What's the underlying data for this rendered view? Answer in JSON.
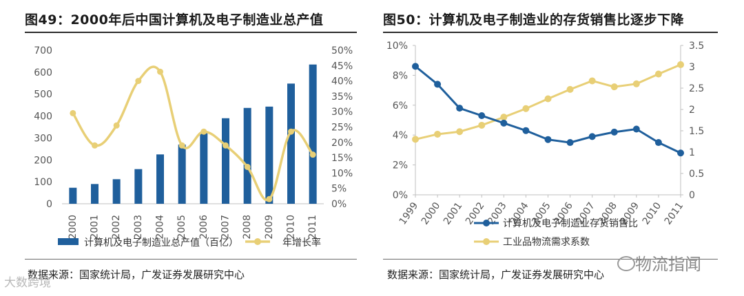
{
  "charts": [
    {
      "id": "fig49",
      "title": "图49：2000年后中国计算机及电子制造业总产值",
      "source": "数据来源：国家统计局，广发证券发展研究中心"
    },
    {
      "id": "fig50",
      "title": "图50：计算机及电子制造业的存货销售比逐步下降",
      "source": "数据来源：国家统计局，广发证券发展研究中心"
    }
  ],
  "watermarks": {
    "right": "物流指闻",
    "left": "大数跨境"
  },
  "colors": {
    "bar": "#1f5f9c",
    "yellow_line": "#e8cf76",
    "blue_line": "#1f5f9c",
    "axis": "#bfbfbf"
  },
  "chart_data": [
    {
      "type": "bar",
      "title": "图49：2000年后中国计算机及电子制造业总产值",
      "categories": [
        "2000",
        "2001",
        "2002",
        "2003",
        "2004",
        "2005",
        "2006",
        "2007",
        "2008",
        "2009",
        "2010",
        "2011"
      ],
      "series": [
        {
          "name": "计算机及电子制造业总产值（百亿）",
          "type": "bar",
          "axis": "left",
          "values": [
            73,
            90,
            112,
            158,
            225,
            270,
            327,
            390,
            437,
            443,
            548,
            635
          ]
        },
        {
          "name": "年增长率",
          "type": "line",
          "axis": "right",
          "smooth": true,
          "values": [
            0.295,
            0.19,
            0.255,
            0.4,
            0.43,
            0.19,
            0.235,
            0.19,
            0.12,
            0.015,
            0.235,
            0.16
          ]
        }
      ],
      "left_axis": {
        "ylim": [
          0,
          700
        ],
        "ticks": [
          "0",
          "100",
          "200",
          "300",
          "400",
          "500",
          "600",
          "700"
        ]
      },
      "right_axis": {
        "ylim": [
          0,
          0.5
        ],
        "ticks": [
          "0%",
          "5%",
          "10%",
          "15%",
          "20%",
          "25%",
          "30%",
          "35%",
          "40%",
          "45%",
          "50%"
        ]
      }
    },
    {
      "type": "line",
      "title": "图50：计算机及电子制造业的存货销售比逐步下降",
      "categories": [
        "1999",
        "2000",
        "2001",
        "2002",
        "2003",
        "2004",
        "2005",
        "2006",
        "2007",
        "2008",
        "2009",
        "2010",
        "2011"
      ],
      "series": [
        {
          "name": "计算机及电子制造业存货销售比",
          "axis": "left",
          "values": [
            0.086,
            0.074,
            0.058,
            0.053,
            0.048,
            0.043,
            0.037,
            0.035,
            0.039,
            0.042,
            0.044,
            0.035,
            0.028
          ]
        },
        {
          "name": "工业品物流需求系数",
          "axis": "right",
          "values": [
            1.3,
            1.42,
            1.48,
            1.63,
            1.82,
            2.02,
            2.25,
            2.47,
            2.67,
            2.53,
            2.6,
            2.83,
            3.05
          ]
        }
      ],
      "left_axis": {
        "ylim": [
          0,
          0.1
        ],
        "ticks": [
          "0%",
          "2%",
          "4%",
          "6%",
          "8%",
          "10%"
        ]
      },
      "right_axis": {
        "ylim": [
          0,
          3.5
        ],
        "ticks": [
          "0",
          "0.5",
          "1",
          "1.5",
          "2",
          "2.5",
          "3",
          "3.5"
        ]
      }
    }
  ]
}
